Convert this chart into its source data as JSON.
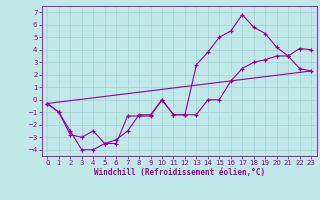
{
  "xlabel": "Windchill (Refroidissement éolien,°C)",
  "bg_color": "#c0e8e8",
  "line_color": "#990099",
  "grid_color": "#a8d8d8",
  "xlim": [
    -0.5,
    23.5
  ],
  "ylim": [
    -4.5,
    7.5
  ],
  "yticks": [
    -4,
    -3,
    -2,
    -1,
    0,
    1,
    2,
    3,
    4,
    5,
    6,
    7
  ],
  "xticks": [
    0,
    1,
    2,
    3,
    4,
    5,
    6,
    7,
    8,
    9,
    10,
    11,
    12,
    13,
    14,
    15,
    16,
    17,
    18,
    19,
    20,
    21,
    22,
    23
  ],
  "series1_x": [
    0,
    1,
    2,
    3,
    4,
    5,
    6,
    7,
    8,
    9,
    10,
    11,
    12,
    13,
    14,
    15,
    16,
    17,
    18,
    19,
    20,
    21,
    22,
    23
  ],
  "series1_y": [
    -0.3,
    -1.0,
    -2.5,
    -4.0,
    -4.0,
    -3.5,
    -3.5,
    -1.3,
    -1.3,
    -1.3,
    0.0,
    -1.2,
    -1.2,
    2.8,
    3.8,
    5.0,
    5.5,
    6.8,
    5.8,
    5.3,
    4.2,
    3.5,
    4.1,
    4.0
  ],
  "series2_x": [
    0,
    1,
    2,
    3,
    4,
    5,
    6,
    7,
    8,
    9,
    10,
    11,
    12,
    13,
    14,
    15,
    16,
    17,
    18,
    19,
    20,
    21,
    22,
    23
  ],
  "series2_y": [
    -0.3,
    -1.0,
    -2.8,
    -3.0,
    -2.5,
    -3.5,
    -3.2,
    -2.5,
    -1.2,
    -1.2,
    0.0,
    -1.2,
    -1.2,
    -1.2,
    0.0,
    0.0,
    1.5,
    2.5,
    3.0,
    3.2,
    3.5,
    3.5,
    2.5,
    2.3
  ],
  "series3_x": [
    0,
    23
  ],
  "series3_y": [
    -0.3,
    2.3
  ]
}
